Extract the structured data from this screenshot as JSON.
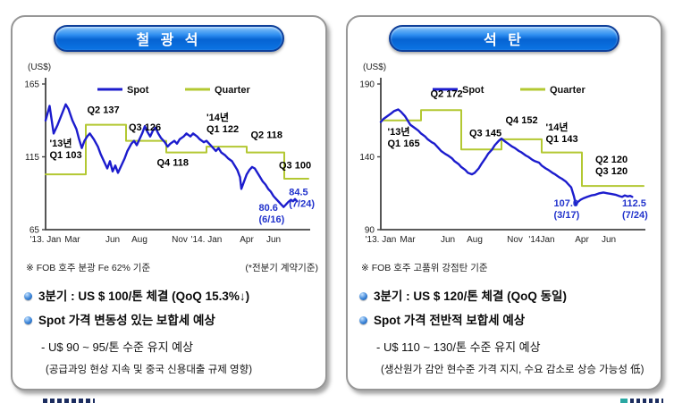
{
  "colors": {
    "accent_blue": "#0b74e4",
    "spot": "#1c1ccd",
    "quarter": "#b3c832",
    "callout": "#2233cc",
    "axis": "#444444"
  },
  "panels": [
    {
      "title": "철 광 석",
      "unit": "(US$)",
      "footnote_left": "※  FOB 호주 분광 Fe 62% 기준",
      "footnote_right": "(*전분기 계약기준)",
      "bullets": [
        {
          "style": "main",
          "text": "3분기 : US $ 100/톤 체결 (QoQ 15.3%↓)"
        },
        {
          "style": "main",
          "text": "Spot 가격 변동성 있는 보합세 예상"
        },
        {
          "style": "sub",
          "text": "- U$ 90 ~ 95/톤 수준 유지 예상"
        },
        {
          "style": "note",
          "text": "(공급과잉 현상 지속 및 중국 신용대출 규제 영향)"
        }
      ]
    },
    {
      "title": "석  탄",
      "unit": "(US$)",
      "footnote_left": "※  FOB 호주 고품위 강점탄 기준",
      "footnote_right": "",
      "bullets": [
        {
          "style": "main",
          "text": "3분기 : US $ 120/톤 체결 (QoQ 동일)"
        },
        {
          "style": "main",
          "text": "Spot 가격 전반적 보합세 예상"
        },
        {
          "style": "sub",
          "text": "- U$ 110 ~ 130/톤 수준 유지 예상"
        },
        {
          "style": "note",
          "text": "(생산원가 감안 현수준 가격 지지, 수요 감소로 상승 가능성 低)"
        }
      ]
    }
  ],
  "chart_data": [
    {
      "type": "line",
      "title": "철광석 (Iron Ore, US$/ton)",
      "ylabel": "(US$)",
      "ylim": [
        65,
        165
      ],
      "xlim": [
        0,
        19.6
      ],
      "grid": false,
      "legend_position": "top-inside",
      "yticks": [
        {
          "v": 165,
          "label": "165"
        },
        {
          "v": 115,
          "label": "115"
        },
        {
          "v": 65,
          "label": "65"
        }
      ],
      "xticks": [
        {
          "x": 0,
          "label": "'13. Jan"
        },
        {
          "x": 2,
          "label": "Mar"
        },
        {
          "x": 5,
          "label": "Jun"
        },
        {
          "x": 7,
          "label": "Aug"
        },
        {
          "x": 10,
          "label": "Nov"
        },
        {
          "x": 12,
          "label": "'14. Jan"
        },
        {
          "x": 15,
          "label": "Apr"
        },
        {
          "x": 17,
          "label": "Jun"
        }
      ],
      "legend": [
        {
          "name": "Spot",
          "color": "#1c1ccd"
        },
        {
          "name": "Quarter",
          "color": "#b3c832"
        }
      ],
      "series": [
        {
          "name": "Quarter",
          "color": "#b3c832",
          "width": 2,
          "steps": [
            [
              0,
              3,
              103
            ],
            [
              3,
              6,
              137
            ],
            [
              6,
              9,
              126
            ],
            [
              9,
              12,
              118
            ],
            [
              12,
              15,
              122
            ],
            [
              15,
              17.8,
              118
            ],
            [
              17.8,
              19.6,
              100
            ]
          ]
        },
        {
          "name": "Spot",
          "color": "#1c1ccd",
          "width": 2.4,
          "points": [
            [
              0,
              140
            ],
            [
              0.3,
              150
            ],
            [
              0.6,
              131
            ],
            [
              0.9,
              137
            ],
            [
              1.2,
              144
            ],
            [
              1.5,
              151
            ],
            [
              1.7,
              148
            ],
            [
              2.0,
              140
            ],
            [
              2.3,
              134
            ],
            [
              2.5,
              127
            ],
            [
              2.7,
              121
            ],
            [
              2.9,
              126
            ],
            [
              3.1,
              129
            ],
            [
              3.3,
              131
            ],
            [
              3.6,
              127
            ],
            [
              3.9,
              122
            ],
            [
              4.1,
              117
            ],
            [
              4.4,
              111
            ],
            [
              4.6,
              107
            ],
            [
              4.8,
              112
            ],
            [
              5.0,
              105
            ],
            [
              5.2,
              109
            ],
            [
              5.4,
              104
            ],
            [
              5.6,
              108
            ],
            [
              5.9,
              114
            ],
            [
              6.1,
              119
            ],
            [
              6.4,
              124
            ],
            [
              6.6,
              126
            ],
            [
              6.8,
              123
            ],
            [
              7.0,
              127
            ],
            [
              7.2,
              131
            ],
            [
              7.4,
              136
            ],
            [
              7.6,
              132
            ],
            [
              7.8,
              129
            ],
            [
              8.0,
              133
            ],
            [
              8.2,
              135
            ],
            [
              8.4,
              131
            ],
            [
              8.6,
              128
            ],
            [
              8.9,
              125
            ],
            [
              9.1,
              122
            ],
            [
              9.3,
              124
            ],
            [
              9.6,
              126
            ],
            [
              9.8,
              124
            ],
            [
              10.0,
              127
            ],
            [
              10.3,
              129
            ],
            [
              10.5,
              131
            ],
            [
              10.8,
              129
            ],
            [
              11.0,
              131
            ],
            [
              11.3,
              129
            ],
            [
              11.5,
              127
            ],
            [
              11.8,
              125
            ],
            [
              12.0,
              126
            ],
            [
              12.2,
              124
            ],
            [
              12.5,
              121
            ],
            [
              12.7,
              119
            ],
            [
              12.9,
              121
            ],
            [
              13.1,
              118
            ],
            [
              13.4,
              116
            ],
            [
              13.6,
              114
            ],
            [
              13.9,
              112
            ],
            [
              14.1,
              109
            ],
            [
              14.3,
              106
            ],
            [
              14.5,
              101
            ],
            [
              14.6,
              93
            ],
            [
              14.8,
              98
            ],
            [
              15.0,
              103
            ],
            [
              15.2,
              106
            ],
            [
              15.4,
              108
            ],
            [
              15.6,
              107
            ],
            [
              15.8,
              104
            ],
            [
              16.0,
              101
            ],
            [
              16.2,
              98
            ],
            [
              16.4,
              96
            ],
            [
              16.6,
              93
            ],
            [
              16.8,
              91
            ],
            [
              17.0,
              88
            ],
            [
              17.2,
              86
            ],
            [
              17.4,
              84
            ],
            [
              17.6,
              82
            ],
            [
              17.75,
              80.6
            ],
            [
              17.9,
              82
            ],
            [
              18.1,
              84
            ],
            [
              18.3,
              85.5
            ],
            [
              18.45,
              84.5
            ],
            [
              18.6,
              86
            ],
            [
              18.75,
              84.5
            ]
          ]
        }
      ],
      "annotations": [
        {
          "x": 0.3,
          "y": 122,
          "lines": [
            "'13년",
            "Q1 103"
          ],
          "color": "#000000"
        },
        {
          "x": 3.1,
          "y": 145,
          "lines": [
            "Q2 137"
          ],
          "color": "#000000"
        },
        {
          "x": 6.2,
          "y": 133,
          "lines": [
            "Q3 126"
          ],
          "color": "#000000"
        },
        {
          "x": 8.3,
          "y": 109,
          "lines": [
            "Q4 118"
          ],
          "color": "#000000"
        },
        {
          "x": 12.0,
          "y": 140,
          "lines": [
            "'14년",
            "Q1 122"
          ],
          "color": "#000000"
        },
        {
          "x": 15.3,
          "y": 128,
          "lines": [
            "Q2 118"
          ],
          "color": "#000000"
        },
        {
          "x": 17.4,
          "y": 107,
          "lines": [
            "Q3 100"
          ],
          "color": "#000000"
        },
        {
          "x": 15.9,
          "y": 78,
          "lines": [
            "80.6",
            "(6/16)"
          ],
          "color": "#2233cc"
        },
        {
          "x": 18.15,
          "y": 88.5,
          "lines": [
            "84.5",
            "(7/24)"
          ],
          "color": "#2233cc"
        }
      ]
    },
    {
      "type": "line",
      "title": "석탄 (Coal, US$/ton)",
      "ylabel": "(US$)",
      "ylim": [
        90,
        190
      ],
      "xlim": [
        0,
        19.6
      ],
      "grid": false,
      "legend_position": "top-inside",
      "yticks": [
        {
          "v": 190,
          "label": "190"
        },
        {
          "v": 140,
          "label": "140"
        },
        {
          "v": 90,
          "label": "90"
        }
      ],
      "xticks": [
        {
          "x": 0,
          "label": "'13. Jan"
        },
        {
          "x": 2,
          "label": "Mar"
        },
        {
          "x": 5,
          "label": "Jun"
        },
        {
          "x": 7,
          "label": "Aug"
        },
        {
          "x": 10,
          "label": "Nov"
        },
        {
          "x": 12,
          "label": "'14Jan"
        },
        {
          "x": 15,
          "label": "Apr"
        },
        {
          "x": 17,
          "label": "Jun"
        }
      ],
      "legend": [
        {
          "name": "Spot",
          "color": "#1c1ccd"
        },
        {
          "name": "Quarter",
          "color": "#b3c832"
        }
      ],
      "series": [
        {
          "name": "Quarter",
          "color": "#b3c832",
          "width": 2,
          "steps": [
            [
              0,
              3,
              165
            ],
            [
              3,
              6,
              172
            ],
            [
              6,
              9,
              145
            ],
            [
              9,
              12,
              152
            ],
            [
              12,
              15,
              143
            ],
            [
              15,
              19.6,
              120
            ]
          ]
        },
        {
          "name": "Spot",
          "color": "#1c1ccd",
          "width": 2.4,
          "points": [
            [
              0,
              164
            ],
            [
              0.2,
              166
            ],
            [
              0.5,
              168
            ],
            [
              0.8,
              170
            ],
            [
              1.0,
              171.5
            ],
            [
              1.3,
              172.5
            ],
            [
              1.5,
              171
            ],
            [
              1.8,
              168
            ],
            [
              2.0,
              165
            ],
            [
              2.2,
              162
            ],
            [
              2.5,
              160
            ],
            [
              2.8,
              158
            ],
            [
              3.0,
              156
            ],
            [
              3.3,
              154
            ],
            [
              3.5,
              152
            ],
            [
              3.8,
              150
            ],
            [
              4.0,
              149
            ],
            [
              4.3,
              146
            ],
            [
              4.5,
              144
            ],
            [
              4.8,
              142
            ],
            [
              5.0,
              141
            ],
            [
              5.3,
              139
            ],
            [
              5.5,
              137
            ],
            [
              5.8,
              135
            ],
            [
              6.0,
              133
            ],
            [
              6.3,
              131
            ],
            [
              6.5,
              129
            ],
            [
              6.8,
              128
            ],
            [
              7.0,
              129
            ],
            [
              7.3,
              132
            ],
            [
              7.5,
              135
            ],
            [
              7.8,
              139
            ],
            [
              8.0,
              142
            ],
            [
              8.3,
              145
            ],
            [
              8.5,
              148
            ],
            [
              8.8,
              151
            ],
            [
              9.0,
              152.5
            ],
            [
              9.2,
              151
            ],
            [
              9.5,
              149
            ],
            [
              9.8,
              147
            ],
            [
              10.0,
              146
            ],
            [
              10.3,
              144
            ],
            [
              10.5,
              143
            ],
            [
              10.8,
              141
            ],
            [
              11.0,
              140
            ],
            [
              11.3,
              138
            ],
            [
              11.5,
              137
            ],
            [
              11.8,
              136
            ],
            [
              12.0,
              134
            ],
            [
              12.3,
              132
            ],
            [
              12.5,
              131
            ],
            [
              12.8,
              129
            ],
            [
              13.0,
              128
            ],
            [
              13.3,
              126
            ],
            [
              13.5,
              125
            ],
            [
              13.8,
              123
            ],
            [
              14.0,
              121
            ],
            [
              14.2,
              119
            ],
            [
              14.4,
              113
            ],
            [
              14.55,
              107
            ],
            [
              14.7,
              109
            ],
            [
              14.9,
              110.5
            ],
            [
              15.1,
              111.5
            ],
            [
              15.4,
              112.5
            ],
            [
              15.7,
              113.5
            ],
            [
              16.0,
              114
            ],
            [
              16.3,
              115
            ],
            [
              16.6,
              115.5
            ],
            [
              16.9,
              115
            ],
            [
              17.2,
              114.5
            ],
            [
              17.5,
              114
            ],
            [
              17.8,
              113
            ],
            [
              18.0,
              112.5
            ],
            [
              18.2,
              113.5
            ],
            [
              18.4,
              112.8
            ],
            [
              18.6,
              113.2
            ],
            [
              18.75,
              112.5
            ]
          ]
        }
      ],
      "annotations": [
        {
          "x": 0.5,
          "y": 155,
          "lines": [
            "'13년",
            "Q1 165"
          ],
          "color": "#000000"
        },
        {
          "x": 3.7,
          "y": 181,
          "lines": [
            "Q2 172"
          ],
          "color": "#000000"
        },
        {
          "x": 6.6,
          "y": 154,
          "lines": [
            "Q3 145"
          ],
          "color": "#000000"
        },
        {
          "x": 9.3,
          "y": 163,
          "lines": [
            "Q4 152"
          ],
          "color": "#000000"
        },
        {
          "x": 12.3,
          "y": 158,
          "lines": [
            "'14년",
            "Q1 143"
          ],
          "color": "#000000"
        },
        {
          "x": 16.0,
          "y": 136,
          "lines": [
            "Q2 120",
            "Q3 120"
          ],
          "color": "#000000"
        },
        {
          "x": 12.9,
          "y": 106,
          "lines": [
            "107.0",
            "(3/17)"
          ],
          "color": "#2233cc"
        },
        {
          "x": 18.0,
          "y": 106,
          "lines": [
            "112.5",
            "(7/24)"
          ],
          "color": "#2233cc"
        }
      ]
    }
  ]
}
